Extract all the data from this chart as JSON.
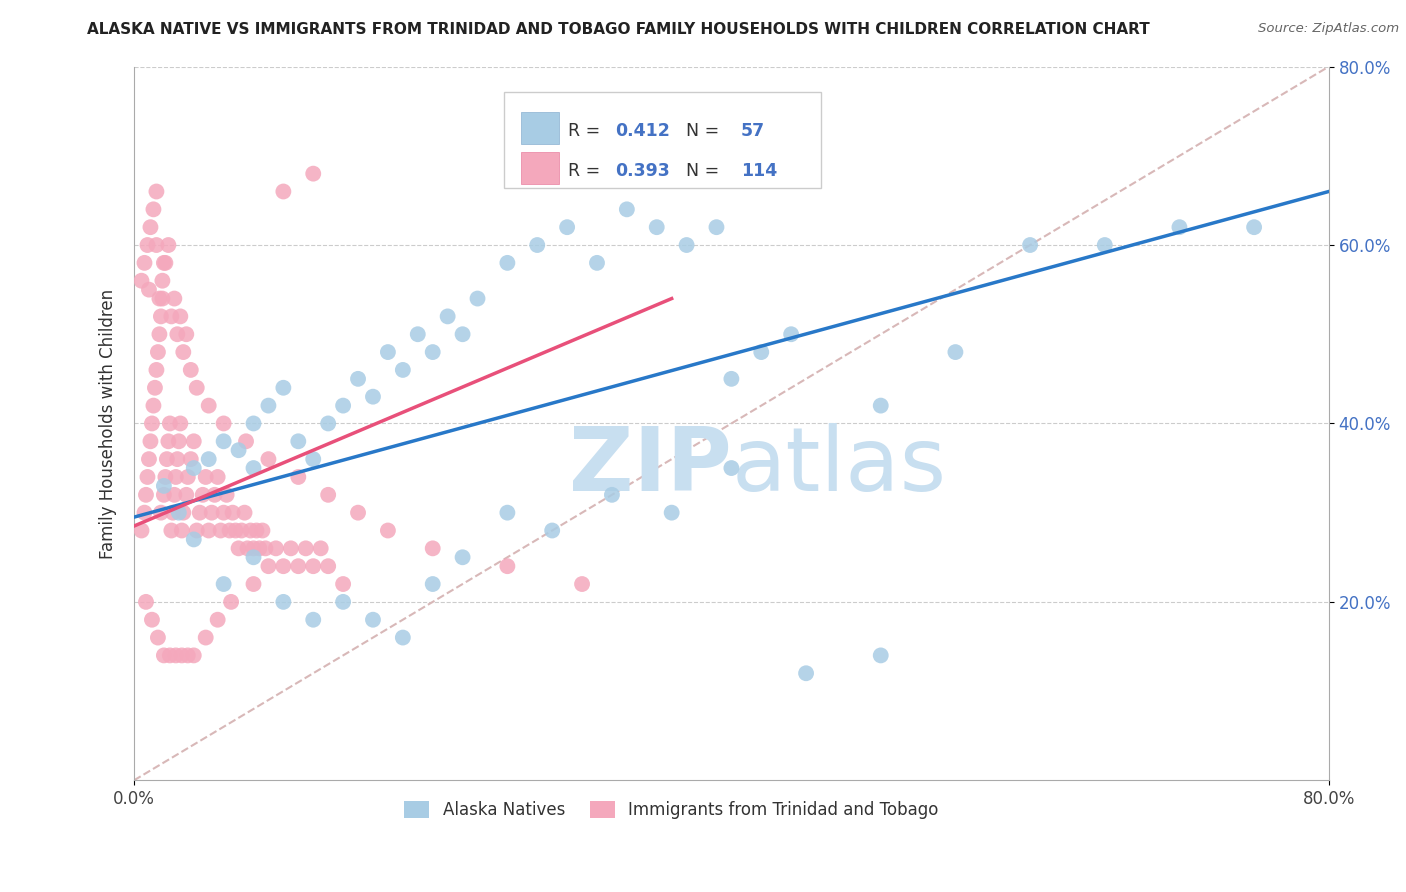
{
  "title": "ALASKA NATIVE VS IMMIGRANTS FROM TRINIDAD AND TOBAGO FAMILY HOUSEHOLDS WITH CHILDREN CORRELATION CHART",
  "source": "Source: ZipAtlas.com",
  "ylabel": "Family Households with Children",
  "xlim": [
    0.0,
    0.8
  ],
  "ylim": [
    0.0,
    0.8
  ],
  "legend_label1": "Alaska Natives",
  "legend_label2": "Immigrants from Trinidad and Tobago",
  "R1": 0.412,
  "N1": 57,
  "R2": 0.393,
  "N2": 114,
  "color_blue": "#a8cce4",
  "color_pink": "#f4a8bc",
  "color_blue_line": "#2878c8",
  "color_pink_line": "#e8507a",
  "color_diag": "#d8b8b8",
  "watermark_color": "#c8dff0",
  "alaska_x": [
    0.02,
    0.03,
    0.04,
    0.05,
    0.06,
    0.07,
    0.08,
    0.08,
    0.09,
    0.1,
    0.11,
    0.12,
    0.13,
    0.14,
    0.15,
    0.16,
    0.17,
    0.18,
    0.19,
    0.2,
    0.21,
    0.22,
    0.23,
    0.25,
    0.27,
    0.29,
    0.31,
    0.33,
    0.35,
    0.37,
    0.39,
    0.4,
    0.42,
    0.44,
    0.5,
    0.55,
    0.6,
    0.65,
    0.7,
    0.75,
    0.04,
    0.06,
    0.08,
    0.1,
    0.12,
    0.14,
    0.16,
    0.18,
    0.2,
    0.22,
    0.25,
    0.28,
    0.32,
    0.36,
    0.4,
    0.45,
    0.5
  ],
  "alaska_y": [
    0.33,
    0.3,
    0.35,
    0.36,
    0.38,
    0.37,
    0.35,
    0.4,
    0.42,
    0.44,
    0.38,
    0.36,
    0.4,
    0.42,
    0.45,
    0.43,
    0.48,
    0.46,
    0.5,
    0.48,
    0.52,
    0.5,
    0.54,
    0.58,
    0.6,
    0.62,
    0.58,
    0.64,
    0.62,
    0.6,
    0.62,
    0.45,
    0.48,
    0.5,
    0.42,
    0.48,
    0.6,
    0.6,
    0.62,
    0.62,
    0.27,
    0.22,
    0.25,
    0.2,
    0.18,
    0.2,
    0.18,
    0.16,
    0.22,
    0.25,
    0.3,
    0.28,
    0.32,
    0.3,
    0.35,
    0.12,
    0.14
  ],
  "tt_x": [
    0.005,
    0.007,
    0.008,
    0.009,
    0.01,
    0.01,
    0.011,
    0.012,
    0.013,
    0.014,
    0.015,
    0.015,
    0.016,
    0.017,
    0.018,
    0.018,
    0.019,
    0.02,
    0.02,
    0.021,
    0.022,
    0.023,
    0.024,
    0.025,
    0.026,
    0.027,
    0.028,
    0.029,
    0.03,
    0.031,
    0.032,
    0.033,
    0.035,
    0.036,
    0.038,
    0.04,
    0.042,
    0.044,
    0.046,
    0.048,
    0.05,
    0.052,
    0.054,
    0.056,
    0.058,
    0.06,
    0.062,
    0.064,
    0.066,
    0.068,
    0.07,
    0.072,
    0.074,
    0.076,
    0.078,
    0.08,
    0.082,
    0.084,
    0.086,
    0.088,
    0.09,
    0.095,
    0.1,
    0.105,
    0.11,
    0.115,
    0.12,
    0.125,
    0.13,
    0.14,
    0.005,
    0.007,
    0.009,
    0.011,
    0.013,
    0.015,
    0.017,
    0.019,
    0.021,
    0.023,
    0.025,
    0.027,
    0.029,
    0.031,
    0.033,
    0.035,
    0.038,
    0.042,
    0.05,
    0.06,
    0.075,
    0.09,
    0.11,
    0.13,
    0.15,
    0.17,
    0.2,
    0.25,
    0.3,
    0.008,
    0.012,
    0.016,
    0.02,
    0.024,
    0.028,
    0.032,
    0.036,
    0.04,
    0.048,
    0.056,
    0.065,
    0.08,
    0.1,
    0.12
  ],
  "tt_y": [
    0.28,
    0.3,
    0.32,
    0.34,
    0.36,
    0.55,
    0.38,
    0.4,
    0.42,
    0.44,
    0.46,
    0.6,
    0.48,
    0.5,
    0.52,
    0.3,
    0.54,
    0.32,
    0.58,
    0.34,
    0.36,
    0.38,
    0.4,
    0.28,
    0.3,
    0.32,
    0.34,
    0.36,
    0.38,
    0.4,
    0.28,
    0.3,
    0.32,
    0.34,
    0.36,
    0.38,
    0.28,
    0.3,
    0.32,
    0.34,
    0.28,
    0.3,
    0.32,
    0.34,
    0.28,
    0.3,
    0.32,
    0.28,
    0.3,
    0.28,
    0.26,
    0.28,
    0.3,
    0.26,
    0.28,
    0.26,
    0.28,
    0.26,
    0.28,
    0.26,
    0.24,
    0.26,
    0.24,
    0.26,
    0.24,
    0.26,
    0.24,
    0.26,
    0.24,
    0.22,
    0.56,
    0.58,
    0.6,
    0.62,
    0.64,
    0.66,
    0.54,
    0.56,
    0.58,
    0.6,
    0.52,
    0.54,
    0.5,
    0.52,
    0.48,
    0.5,
    0.46,
    0.44,
    0.42,
    0.4,
    0.38,
    0.36,
    0.34,
    0.32,
    0.3,
    0.28,
    0.26,
    0.24,
    0.22,
    0.2,
    0.18,
    0.16,
    0.14,
    0.14,
    0.14,
    0.14,
    0.14,
    0.14,
    0.16,
    0.18,
    0.2,
    0.22,
    0.66,
    0.68
  ],
  "alaska_line_x": [
    0.0,
    0.8
  ],
  "alaska_line_y": [
    0.295,
    0.66
  ],
  "tt_line_x": [
    0.0,
    0.36
  ],
  "tt_line_y": [
    0.285,
    0.54
  ]
}
